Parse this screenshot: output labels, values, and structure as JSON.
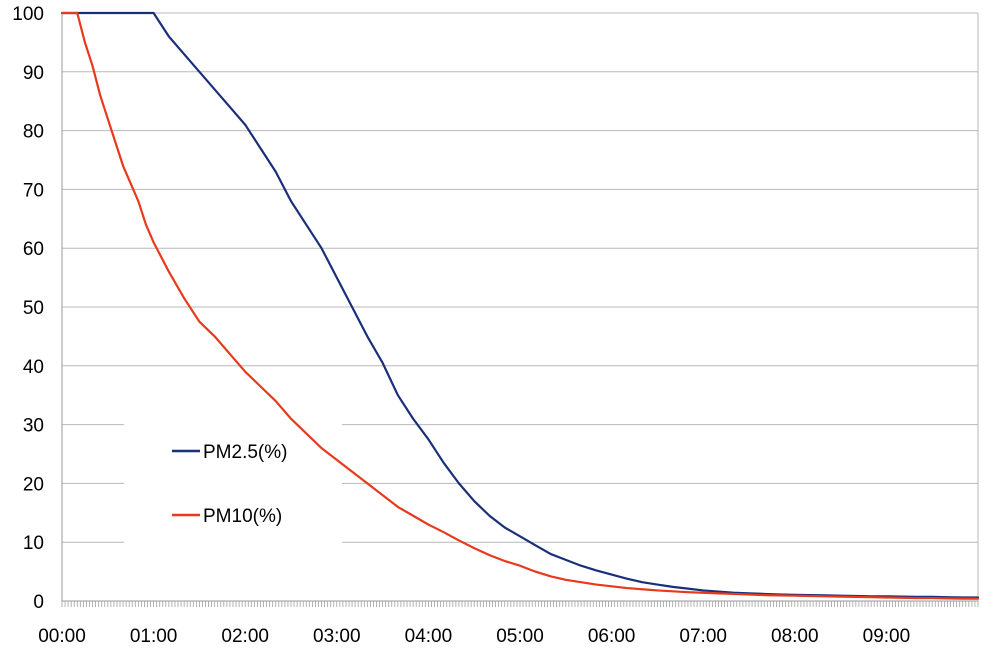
{
  "chart_data": {
    "type": "line",
    "title": "",
    "xlabel": "",
    "ylabel": "",
    "x_unit": "minutes",
    "xlim": [
      0,
      600
    ],
    "ylim": [
      0,
      100
    ],
    "y_ticks": [
      "0",
      "10",
      "20",
      "30",
      "40",
      "50",
      "60",
      "70",
      "80",
      "90",
      "100"
    ],
    "x_ticks": [
      {
        "label": "00:00",
        "value": 0
      },
      {
        "label": "01:00",
        "value": 60
      },
      {
        "label": "02:00",
        "value": 120
      },
      {
        "label": "03:00",
        "value": 180
      },
      {
        "label": "04:00",
        "value": 240
      },
      {
        "label": "05:00",
        "value": 300
      },
      {
        "label": "06:00",
        "value": 360
      },
      {
        "label": "07:00",
        "value": 420
      },
      {
        "label": "08:00",
        "value": 480
      },
      {
        "label": "09:00",
        "value": 540
      }
    ],
    "grid": true,
    "legend_position": "lower-left",
    "series": [
      {
        "name": "PM2.5(%)",
        "color": "#1a2f7a",
        "points": [
          [
            0,
            100
          ],
          [
            10,
            100
          ],
          [
            20,
            100
          ],
          [
            30,
            100
          ],
          [
            40,
            100
          ],
          [
            50,
            100
          ],
          [
            60,
            100
          ],
          [
            65,
            98
          ],
          [
            70,
            96
          ],
          [
            80,
            93
          ],
          [
            90,
            90
          ],
          [
            100,
            87
          ],
          [
            110,
            84
          ],
          [
            120,
            81
          ],
          [
            130,
            77
          ],
          [
            140,
            73
          ],
          [
            150,
            68
          ],
          [
            160,
            64
          ],
          [
            170,
            60
          ],
          [
            180,
            55
          ],
          [
            190,
            50
          ],
          [
            200,
            45
          ],
          [
            210,
            40.5
          ],
          [
            220,
            35
          ],
          [
            230,
            31
          ],
          [
            240,
            27.5
          ],
          [
            250,
            23.5
          ],
          [
            260,
            20
          ],
          [
            270,
            17
          ],
          [
            280,
            14.5
          ],
          [
            290,
            12.5
          ],
          [
            300,
            11
          ],
          [
            310,
            9.5
          ],
          [
            320,
            8
          ],
          [
            330,
            7
          ],
          [
            340,
            6
          ],
          [
            350,
            5.2
          ],
          [
            360,
            4.5
          ],
          [
            370,
            3.8
          ],
          [
            380,
            3.2
          ],
          [
            390,
            2.8
          ],
          [
            400,
            2.4
          ],
          [
            410,
            2.1
          ],
          [
            420,
            1.8
          ],
          [
            430,
            1.6
          ],
          [
            440,
            1.4
          ],
          [
            450,
            1.3
          ],
          [
            460,
            1.2
          ],
          [
            470,
            1.1
          ],
          [
            480,
            1.05
          ],
          [
            490,
            1.0
          ],
          [
            500,
            0.95
          ],
          [
            510,
            0.9
          ],
          [
            520,
            0.85
          ],
          [
            530,
            0.8
          ],
          [
            540,
            0.8
          ],
          [
            550,
            0.75
          ],
          [
            560,
            0.7
          ],
          [
            570,
            0.7
          ],
          [
            580,
            0.65
          ],
          [
            590,
            0.6
          ],
          [
            600,
            0.6
          ]
        ]
      },
      {
        "name": "PM10(%)",
        "color": "#e8391b",
        "points": [
          [
            0,
            100
          ],
          [
            5,
            100
          ],
          [
            10,
            100
          ],
          [
            15,
            95
          ],
          [
            20,
            91
          ],
          [
            25,
            86
          ],
          [
            30,
            82
          ],
          [
            35,
            78
          ],
          [
            40,
            74
          ],
          [
            45,
            71
          ],
          [
            50,
            68
          ],
          [
            55,
            64
          ],
          [
            60,
            61
          ],
          [
            70,
            56
          ],
          [
            80,
            51.5
          ],
          [
            90,
            47.5
          ],
          [
            100,
            45
          ],
          [
            110,
            42
          ],
          [
            120,
            39
          ],
          [
            130,
            36.5
          ],
          [
            140,
            34
          ],
          [
            150,
            31
          ],
          [
            160,
            28.5
          ],
          [
            170,
            26
          ],
          [
            180,
            24
          ],
          [
            190,
            22
          ],
          [
            200,
            20
          ],
          [
            210,
            18
          ],
          [
            220,
            16
          ],
          [
            230,
            14.5
          ],
          [
            240,
            13
          ],
          [
            250,
            11.7
          ],
          [
            260,
            10.3
          ],
          [
            270,
            9
          ],
          [
            280,
            7.8
          ],
          [
            290,
            6.8
          ],
          [
            300,
            6
          ],
          [
            310,
            5
          ],
          [
            320,
            4.2
          ],
          [
            330,
            3.6
          ],
          [
            340,
            3.2
          ],
          [
            350,
            2.8
          ],
          [
            360,
            2.5
          ],
          [
            370,
            2.2
          ],
          [
            380,
            2
          ],
          [
            390,
            1.8
          ],
          [
            400,
            1.65
          ],
          [
            410,
            1.5
          ],
          [
            420,
            1.4
          ],
          [
            430,
            1.3
          ],
          [
            440,
            1.2
          ],
          [
            450,
            1.1
          ],
          [
            460,
            1.0
          ],
          [
            470,
            0.95
          ],
          [
            480,
            0.9
          ],
          [
            490,
            0.85
          ],
          [
            500,
            0.8
          ],
          [
            510,
            0.75
          ],
          [
            520,
            0.7
          ],
          [
            530,
            0.65
          ],
          [
            540,
            0.6
          ],
          [
            550,
            0.55
          ],
          [
            560,
            0.5
          ],
          [
            570,
            0.5
          ],
          [
            580,
            0.45
          ],
          [
            590,
            0.4
          ],
          [
            600,
            0.4
          ]
        ]
      }
    ]
  }
}
